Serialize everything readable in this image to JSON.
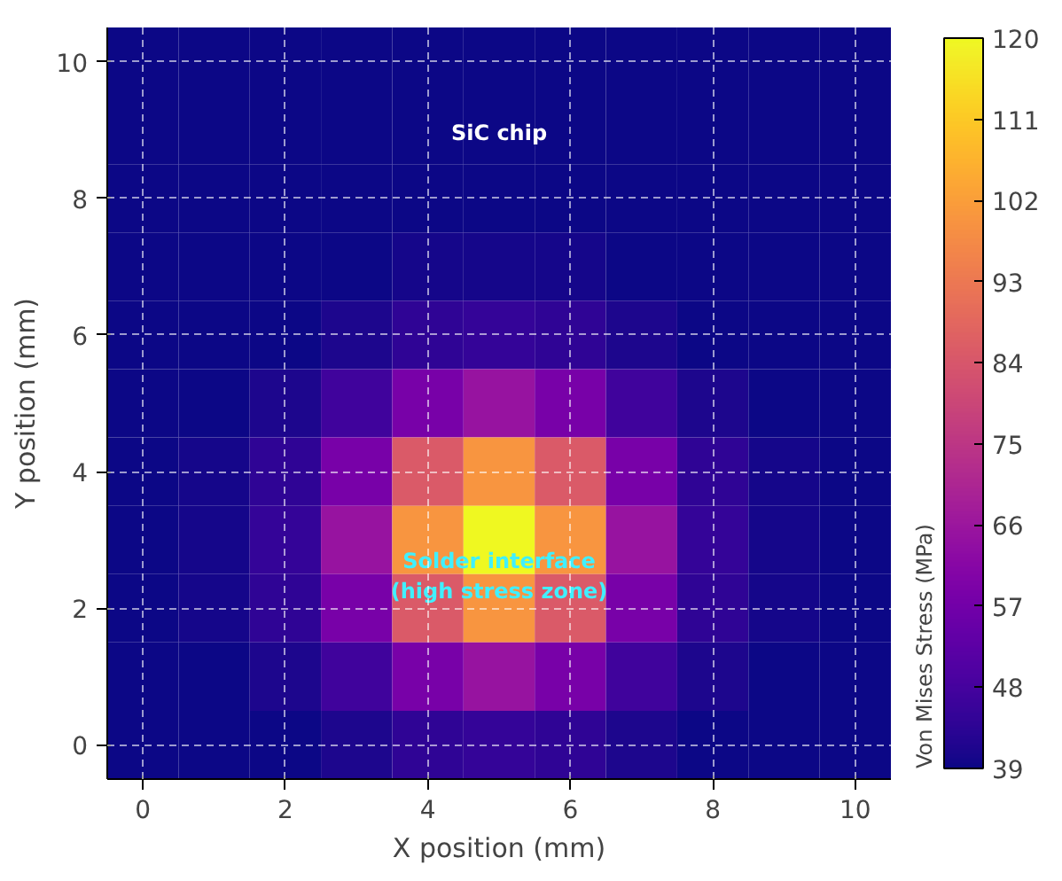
{
  "chart_data": {
    "type": "heatmap",
    "xlabel": "X position (mm)",
    "ylabel": "Y position (mm)",
    "clabel": "Von Mises Stress (MPa)",
    "categories": [
      "0",
      null,
      "2",
      null,
      "4",
      null,
      "6",
      null,
      "8",
      null,
      "10"
    ],
    "y_categories": [
      "10",
      null,
      "8",
      null,
      "6",
      null,
      "4",
      null,
      "2",
      null,
      "0"
    ],
    "cells": [
      [
        39,
        39,
        39,
        39,
        39,
        39,
        39,
        39,
        39,
        39,
        39
      ],
      [
        39,
        39,
        39,
        39,
        39,
        39,
        39,
        39,
        39,
        39,
        39
      ],
      [
        39,
        39,
        39,
        39,
        39,
        39,
        39,
        39,
        39,
        39,
        39
      ],
      [
        39,
        39,
        39,
        39,
        40,
        40,
        40,
        39,
        39,
        39,
        39
      ],
      [
        39,
        39,
        39,
        41,
        44,
        45,
        44,
        41,
        39,
        39,
        39
      ],
      [
        39,
        39,
        41,
        47,
        58,
        65,
        58,
        47,
        41,
        39,
        39
      ],
      [
        39,
        40,
        44,
        58,
        85,
        100,
        85,
        58,
        44,
        40,
        39
      ],
      [
        39,
        40,
        45,
        65,
        100,
        120,
        100,
        65,
        45,
        40,
        39
      ],
      [
        39,
        40,
        44,
        58,
        85,
        100,
        85,
        58,
        44,
        40,
        39
      ],
      [
        39,
        39,
        41,
        47,
        58,
        65,
        58,
        47,
        41,
        39,
        39
      ],
      [
        39,
        39,
        39,
        41,
        44,
        45,
        44,
        41,
        39,
        39,
        39
      ]
    ],
    "clim": [
      39,
      120
    ],
    "cticks": [
      39,
      48,
      57,
      66,
      75,
      84,
      93,
      102,
      111,
      120
    ],
    "grid": true,
    "annotations": [
      "SiC chip",
      "Solder interface\n(high stress zone)"
    ]
  }
}
